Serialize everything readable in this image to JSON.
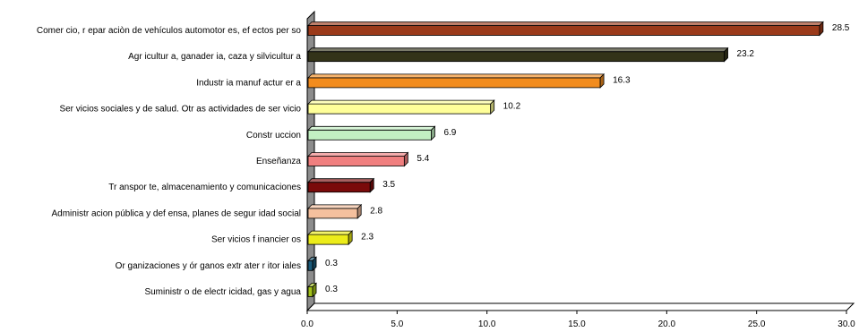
{
  "chart_data": {
    "type": "bar",
    "orientation": "horizontal",
    "style": "3d-cylinder",
    "categories": [
      "Comer cio, r epar aciòn de vehículos automotor es, ef ectos per so",
      "Agr icultur a, ganader ia, caza y silvicultur a",
      "Industr ia manuf actur er a",
      "Ser vicios sociales y de salud. Otr as actividades de ser vicio",
      "Constr uccion",
      "Enseñanza",
      "Tr anspor te, almacenamiento y comunicaciones",
      "Administr acion pública y def ensa, planes de segur idad social",
      "Ser vicios f inancier os",
      "Or ganizaciones y ór ganos extr ater r itor iales",
      "Suministr o de electr icidad, gas y agua"
    ],
    "values": [
      28.5,
      23.2,
      16.3,
      10.2,
      6.9,
      5.4,
      3.5,
      2.8,
      2.3,
      0.3,
      0.3
    ],
    "value_labels": [
      "28.5",
      "23.2",
      "16.3",
      "10.2",
      "6.9",
      "5.4",
      "3.5",
      "2.8",
      "2.3",
      "0.3",
      "0.3"
    ],
    "colors": [
      "#9b3a1a",
      "#333319",
      "#f28c1e",
      "#ffff99",
      "#c2f0c2",
      "#f07f7f",
      "#7a0a0a",
      "#f5c09e",
      "#ecec1a",
      "#1a5a7a",
      "#a3c21a"
    ],
    "xlim": [
      0,
      30
    ],
    "xticks": [
      "0.0",
      "5.0",
      "10.0",
      "15.0",
      "20.0",
      "25.0",
      "30.0"
    ],
    "grid": false,
    "legend": "none",
    "title": "",
    "xlabel": "",
    "ylabel": ""
  }
}
